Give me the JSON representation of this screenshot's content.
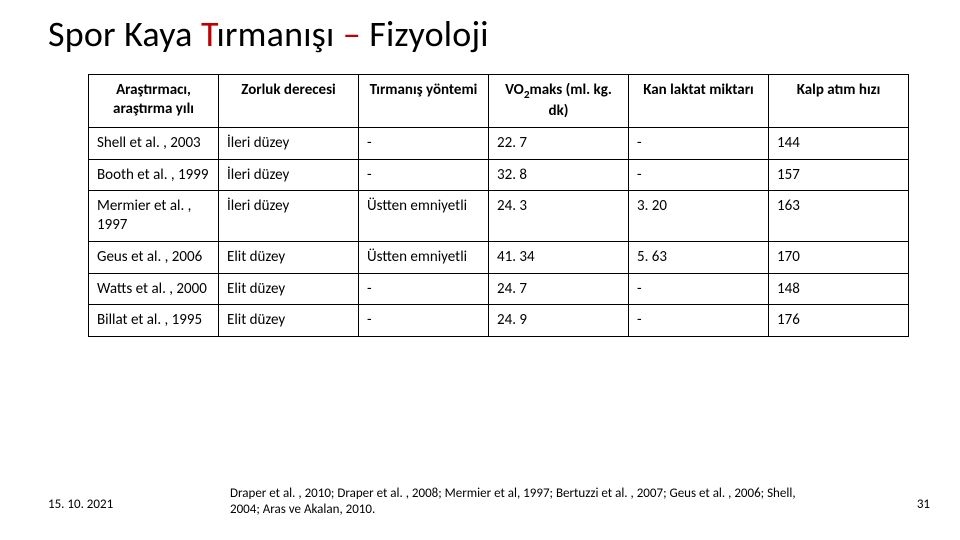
{
  "title_parts": {
    "black1": "Spor Kaya ",
    "red1": "T",
    "black2": "ırmanışı ",
    "red2": "–",
    "black3": " Fizyoloji"
  },
  "table": {
    "columns": [
      "Araştırmacı, araştırma yılı",
      "Zorluk derecesi",
      "Tırmanış yöntemi",
      "VO₂maks (ml. kg. dk)",
      "Kan laktat miktarı",
      "Kalp atım hızı"
    ],
    "rows": [
      [
        "Shell et al. , 2003",
        "İleri düzey",
        "-",
        "22. 7",
        "-",
        "144"
      ],
      [
        "Booth et al. , 1999",
        "İleri düzey",
        "-",
        "32. 8",
        "-",
        "157"
      ],
      [
        "Mermier et al. , 1997",
        "İleri düzey",
        "Üstten emniyetli",
        "24. 3",
        "3. 20",
        "163"
      ],
      [
        "Geus et al. , 2006",
        "Elit düzey",
        "Üstten emniyetli",
        "41. 34",
        "5. 63",
        "170"
      ],
      [
        "Watts et al. , 2000",
        "Elit düzey",
        "-",
        "24. 7",
        "-",
        "148"
      ],
      [
        "Billat et al. , 1995",
        "Elit düzey",
        "-",
        "24. 9",
        "-",
        "176"
      ]
    ]
  },
  "footer": {
    "date": "15. 10. 2021",
    "citation": "Draper et al. , 2010; Draper et al. , 2008; Mermier et al, 1997; Bertuzzi et al. , 2007; Geus et al. , 2006; Shell, 2004; Aras ve Akalan, 2010.",
    "page": "31"
  },
  "colors": {
    "accent": "#c00000",
    "text": "#000000",
    "background": "#ffffff",
    "border": "#000000"
  }
}
